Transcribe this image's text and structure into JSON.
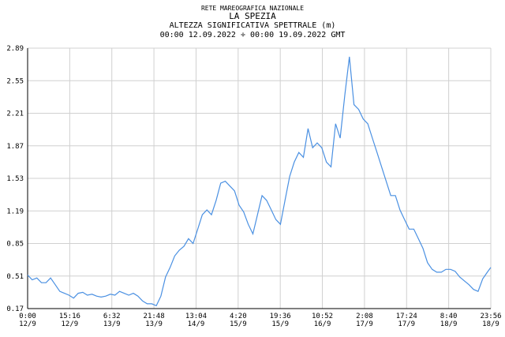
{
  "chart_data": {
    "type": "line",
    "network": "RETE MAREOGRAFICA NAZIONALE",
    "title": "LA SPEZIA",
    "subtitle": "ALTEZZA SIGNIFICATIVA SPETTRALE (m)",
    "period": "00:00 12.09.2022 ÷ 00:00 19.09.2022 GMT",
    "color": "#4a90e2",
    "grid": true,
    "xlim": [
      0,
      10076
    ],
    "xticks": [
      {
        "value": 0,
        "label": "0:00"
      },
      {
        "value": 916,
        "label": "15:16"
      },
      {
        "value": 1832,
        "label": "6:32"
      },
      {
        "value": 2748,
        "label": "21:48"
      },
      {
        "value": 3664,
        "label": "13:04"
      },
      {
        "value": 4580,
        "label": "4:20"
      },
      {
        "value": 5496,
        "label": "19:36"
      },
      {
        "value": 6412,
        "label": "10:52"
      },
      {
        "value": 7328,
        "label": "2:08"
      },
      {
        "value": 8244,
        "label": "17:24"
      },
      {
        "value": 9160,
        "label": "8:40"
      },
      {
        "value": 10076,
        "label": "23:56"
      }
    ],
    "xtick_dates": [
      "12/9",
      "12/9",
      "13/9",
      "13/9",
      "14/9",
      "15/9",
      "15/9",
      "16/9",
      "17/9",
      "17/9",
      "18/9",
      "18/9"
    ],
    "ylim": [
      0.17,
      2.89
    ],
    "yticks": [
      0.17,
      0.51,
      0.85,
      1.19,
      1.53,
      1.87,
      2.21,
      2.55,
      2.89
    ],
    "x": [
      0,
      100,
      200,
      300,
      400,
      500,
      600,
      700,
      800,
      900,
      1000,
      1100,
      1200,
      1300,
      1400,
      1500,
      1600,
      1700,
      1800,
      1900,
      2000,
      2100,
      2200,
      2300,
      2400,
      2500,
      2600,
      2700,
      2800,
      2900,
      3000,
      3100,
      3200,
      3300,
      3400,
      3500,
      3600,
      3700,
      3800,
      3900,
      4000,
      4100,
      4200,
      4300,
      4400,
      4500,
      4600,
      4700,
      4800,
      4900,
      5000,
      5100,
      5200,
      5300,
      5400,
      5500,
      5600,
      5700,
      5800,
      5900,
      6000,
      6100,
      6200,
      6300,
      6400,
      6500,
      6600,
      6700,
      6800,
      6900,
      7000,
      7100,
      7200,
      7300,
      7400,
      7500,
      7600,
      7700,
      7800,
      7900,
      8000,
      8100,
      8200,
      8300,
      8400,
      8500,
      8600,
      8700,
      8800,
      8900,
      9000,
      9100,
      9200,
      9300,
      9400,
      9500,
      9600,
      9700,
      9800,
      9900,
      10000,
      10076
    ],
    "values": [
      0.52,
      0.47,
      0.49,
      0.44,
      0.44,
      0.49,
      0.42,
      0.35,
      0.33,
      0.31,
      0.28,
      0.33,
      0.34,
      0.31,
      0.32,
      0.3,
      0.29,
      0.3,
      0.32,
      0.31,
      0.35,
      0.33,
      0.31,
      0.33,
      0.3,
      0.25,
      0.22,
      0.22,
      0.2,
      0.3,
      0.5,
      0.6,
      0.72,
      0.78,
      0.82,
      0.9,
      0.85,
      1.0,
      1.15,
      1.2,
      1.15,
      1.3,
      1.48,
      1.5,
      1.45,
      1.4,
      1.25,
      1.18,
      1.05,
      0.95,
      1.15,
      1.35,
      1.3,
      1.2,
      1.1,
      1.05,
      1.3,
      1.55,
      1.7,
      1.8,
      1.75,
      2.05,
      1.85,
      1.9,
      1.85,
      1.7,
      1.65,
      2.1,
      1.95,
      2.4,
      2.8,
      2.3,
      2.25,
      2.15,
      2.1,
      1.95,
      1.8,
      1.65,
      1.5,
      1.35,
      1.35,
      1.2,
      1.1,
      1.0,
      1.0,
      0.9,
      0.8,
      0.65,
      0.58,
      0.55,
      0.55,
      0.58,
      0.58,
      0.56,
      0.5,
      0.46,
      0.42,
      0.37,
      0.35,
      0.48,
      0.55,
      0.6
    ]
  }
}
